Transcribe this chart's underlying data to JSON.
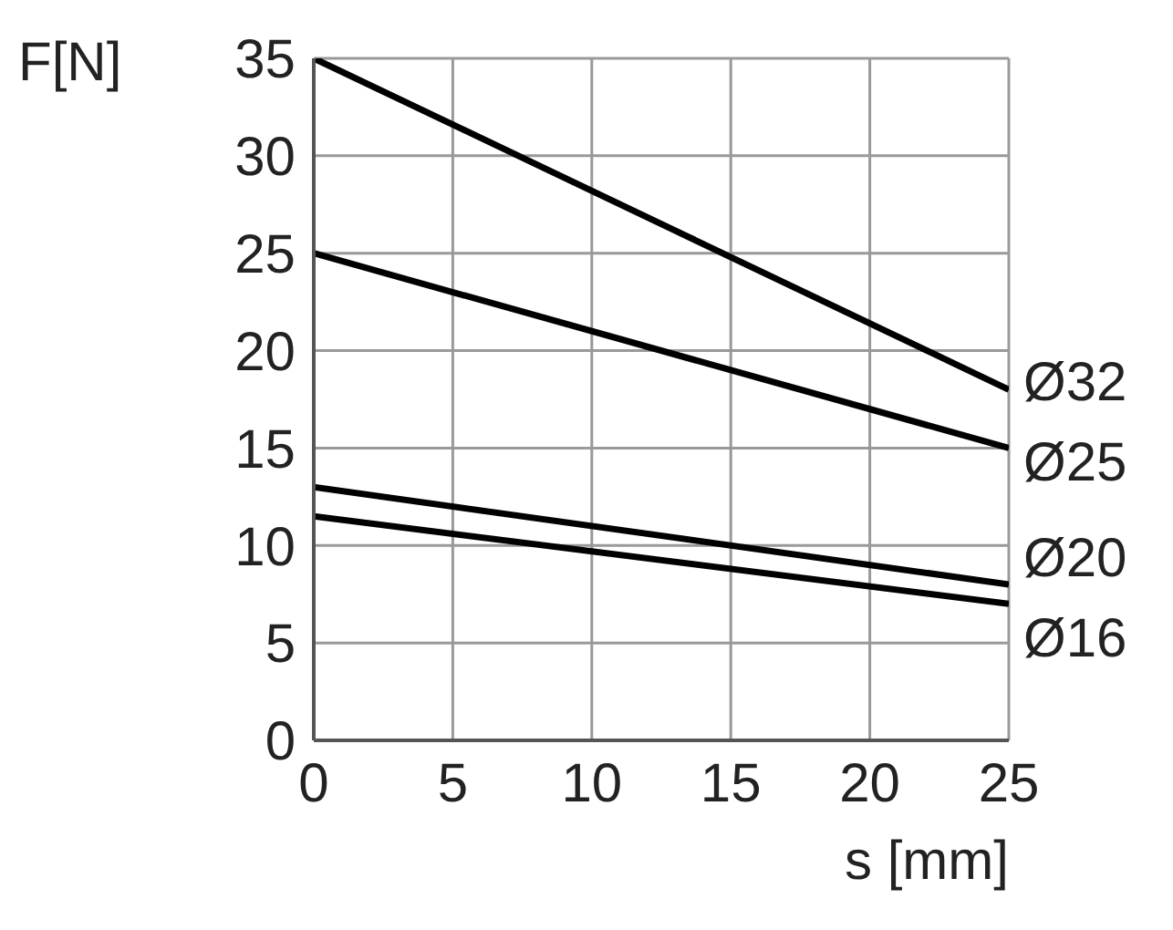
{
  "chart_data": {
    "type": "line",
    "xlabel": "s [mm]",
    "ylabel": "F[N]",
    "x": [
      0,
      25
    ],
    "series": [
      {
        "name": "Ø32",
        "color": "#000000",
        "values": [
          35,
          18
        ]
      },
      {
        "name": "Ø25",
        "color": "#000000",
        "values": [
          25,
          15
        ]
      },
      {
        "name": "Ø20",
        "color": "#000000",
        "values": [
          13,
          8
        ]
      },
      {
        "name": "Ø16",
        "color": "#000000",
        "values": [
          11.5,
          7
        ]
      }
    ],
    "xlim": [
      0,
      25
    ],
    "xticks": [
      0,
      5,
      10,
      15,
      20,
      25
    ],
    "ylim": [
      0,
      35
    ],
    "yticks": [
      0,
      5,
      10,
      15,
      20,
      25,
      30,
      35
    ],
    "grid": true,
    "legend": false,
    "marker": "none",
    "line_style": "solid"
  }
}
